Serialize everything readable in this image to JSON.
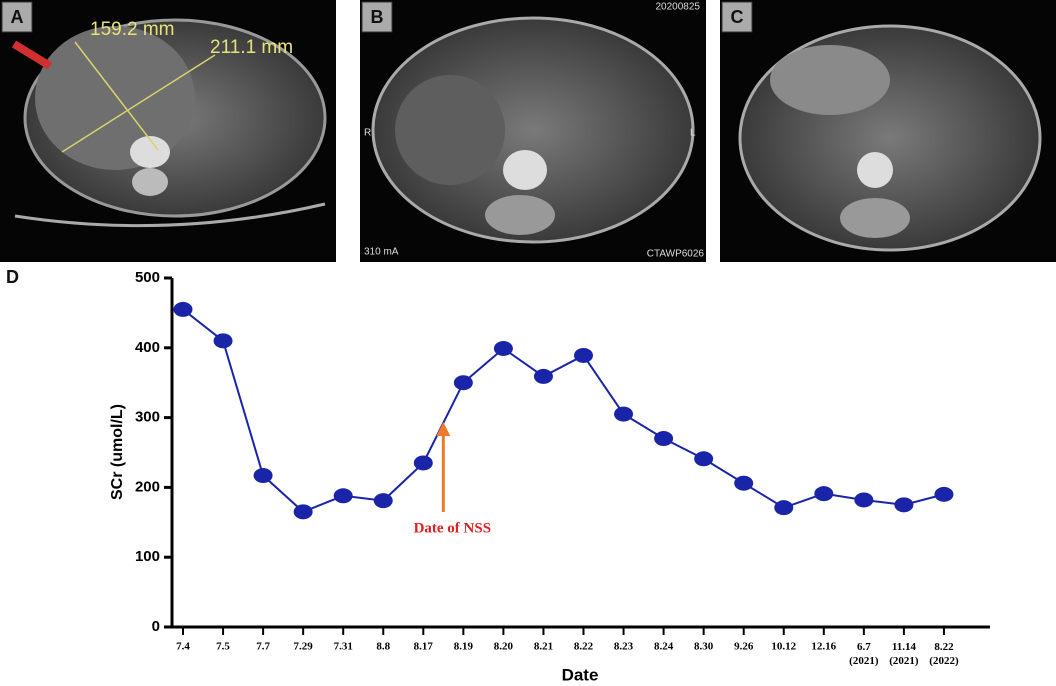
{
  "panels": [
    {
      "label": "A",
      "texts": [
        "159.2 mm",
        "211.1 mm"
      ]
    },
    {
      "label": "B",
      "texts": [
        "R",
        "L",
        "20200825",
        "CTAWP6026",
        "310 mA"
      ]
    },
    {
      "label": "C"
    }
  ],
  "chart_data": {
    "type": "line",
    "panel_label": "D",
    "x_label": "Date",
    "y_label": "SCr (umol/L)",
    "annotation": "Date of NSS",
    "categories": [
      "7.4",
      "7.5",
      "7.7",
      "7.29",
      "7.31",
      "8.8",
      "8.17",
      "8.19",
      "8.20",
      "8.21",
      "8.22",
      "8.23",
      "8.24",
      "8.30",
      "9.26",
      "10.12",
      "12.16",
      "6.7 (2021)",
      "11.14 (2021)",
      "8.22 (2022)"
    ],
    "values": [
      455,
      410,
      217,
      165,
      188,
      181,
      235,
      350,
      399,
      359,
      389,
      305,
      270,
      241,
      206,
      171,
      191,
      182,
      175,
      190
    ],
    "color": "#1a24a8",
    "annotation_color": "#e02020",
    "arrow_color": "#f07a2a",
    "ylim": [
      0,
      500
    ],
    "yticks": [
      0,
      100,
      200,
      300,
      400,
      500
    ]
  }
}
